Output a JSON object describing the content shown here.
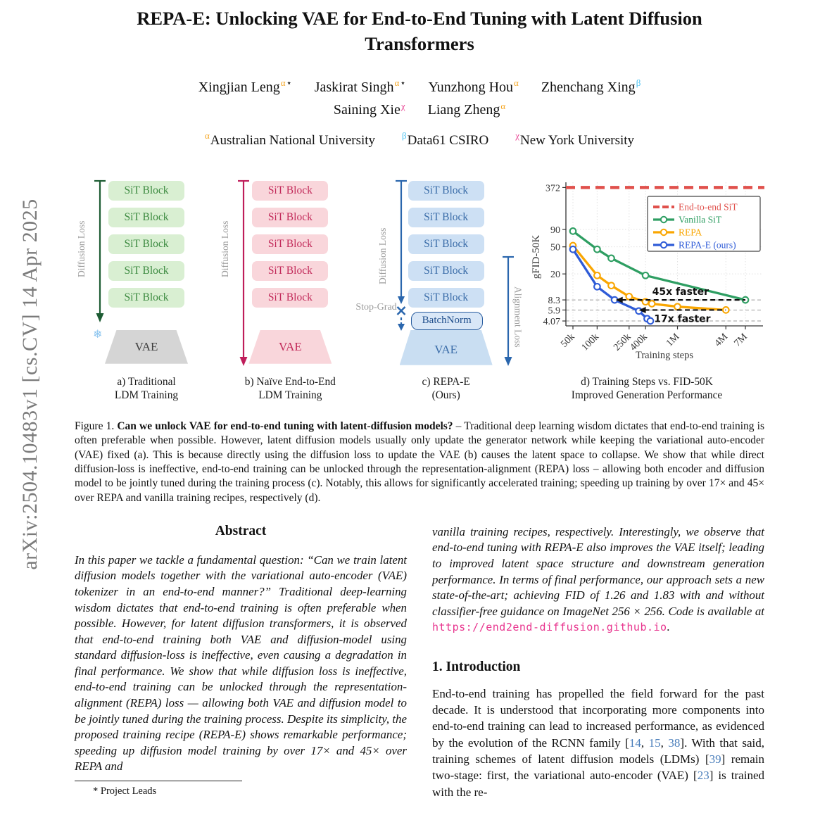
{
  "arxiv_banner": "arXiv:2504.10483v1  [cs.CV]  14 Apr 2025",
  "title": {
    "line1": "REPA-E: Unlocking VAE for End-to-End Tuning with Latent Diffusion",
    "line2": "Transformers"
  },
  "authors": {
    "row1": [
      {
        "name": "Xingjian Leng",
        "sups": [
          {
            "text": "α",
            "color": "#f5a623"
          },
          {
            "text": "⋆",
            "color": "#111111"
          }
        ]
      },
      {
        "name": "Jaskirat Singh",
        "sups": [
          {
            "text": "α",
            "color": "#f5a623"
          },
          {
            "text": "⋆",
            "color": "#111111"
          }
        ]
      },
      {
        "name": "Yunzhong Hou",
        "sups": [
          {
            "text": "α",
            "color": "#f5a623"
          }
        ]
      },
      {
        "name": "Zhenchang Xing",
        "sups": [
          {
            "text": "β",
            "color": "#45c0f0"
          }
        ]
      }
    ],
    "row2": [
      {
        "name": "Saining Xie",
        "sups": [
          {
            "text": "χ",
            "color": "#e84393"
          }
        ]
      },
      {
        "name": "Liang Zheng",
        "sups": [
          {
            "text": "α",
            "color": "#f5a623"
          }
        ]
      }
    ]
  },
  "affiliations": [
    {
      "sup": "α",
      "color": "#f5a623",
      "name": "Australian National University"
    },
    {
      "sup": "β",
      "color": "#45c0f0",
      "name": "Data61 CSIRO"
    },
    {
      "sup": "χ",
      "color": "#e84393",
      "name": "New York University"
    }
  ],
  "figure": {
    "panels": {
      "a": {
        "loss_label": "Diffusion Loss",
        "blocks": [
          "SiT Block",
          "SiT Block",
          "SiT Block",
          "SiT Block",
          "SiT Block"
        ],
        "vae_label": "VAE",
        "snowflake_icon": "❄",
        "caption_line1": "a) Traditional",
        "caption_line2": "LDM Training"
      },
      "b": {
        "loss_label": "Diffusion Loss",
        "blocks": [
          "SiT Block",
          "SiT Block",
          "SiT Block",
          "SiT Block",
          "SiT Block"
        ],
        "vae_label": "VAE",
        "caption_line1": "b) Naïve End-to-End",
        "caption_line2": "LDM Training"
      },
      "c": {
        "loss_label": "Diffusion Loss",
        "blocks": [
          "SiT Block",
          "SiT Block",
          "SiT Block",
          "SiT Block",
          "SiT Block"
        ],
        "stop_grad_label": "Stop-Grad",
        "batchnorm_label": "BatchNorm",
        "alignment_label": "Alignment Loss",
        "vae_label": "VAE",
        "caption_line1": "c) REPA-E",
        "caption_line2": "(Ours)"
      },
      "d": {
        "caption_line1": "d) Training Steps vs. FID-50K",
        "caption_line2": "Improved Generation Performance"
      }
    },
    "caption_segments": [
      {
        "text": "Figure 1.  "
      },
      {
        "text": "Can we unlock VAE for end-to-end tuning with latent-diffusion models?",
        "style": "cap-bold"
      },
      {
        "text": " – Traditional deep learning wisdom dictates that end-to-end training is often preferable when possible. However, latent diffusion models usually only update the generator network while keeping the variational auto-encoder (VAE) fixed (a). This is because directly using the diffusion loss to update the VAE (b) causes the latent space to collapse. We show that while direct diffusion-loss is ineffective, end-to-end training can be unlocked through the representation-alignment (REPA) loss – allowing both encoder and diffusion model to be jointly tuned during the training process (c). Notably, this allows for significantly accelerated training; speeding up training by over 17× and 45× over REPA and vanilla training recipes, respectively (d)."
      }
    ]
  },
  "chart_data": {
    "type": "line",
    "xlabel": "Training steps",
    "ylabel": "gFID-50K",
    "x_scale": "log",
    "y_scale": "log",
    "grid": true,
    "legend_position": "upper right",
    "x_ticks": [
      {
        "v": 50000,
        "label": "50k"
      },
      {
        "v": 100000,
        "label": "100k"
      },
      {
        "v": 250000,
        "label": "250k"
      },
      {
        "v": 400000,
        "label": "400k"
      },
      {
        "v": 1000000,
        "label": "1M"
      },
      {
        "v": 4000000,
        "label": "4M"
      },
      {
        "v": 7000000,
        "label": "7M"
      }
    ],
    "y_ticks": [
      {
        "v": 372,
        "label": "372"
      },
      {
        "v": 90,
        "label": "90"
      },
      {
        "v": 50,
        "label": "50"
      },
      {
        "v": 20,
        "label": "20"
      },
      {
        "v": 8.3,
        "label": "8.3"
      },
      {
        "v": 5.9,
        "label": "5.9"
      },
      {
        "v": 4.07,
        "label": "4.07"
      }
    ],
    "light_gridlines": [
      90,
      50,
      20
    ],
    "dashed_gridlines": [
      8.3,
      5.9,
      4.07
    ],
    "series": [
      {
        "name": "End-to-end SiT",
        "color": "#e0514c",
        "style": "hline-dashed",
        "value": 372
      },
      {
        "name": "Vanilla SiT",
        "color": "#2e9e62",
        "style": "solid-marker",
        "points": [
          [
            50000,
            85
          ],
          [
            100000,
            46
          ],
          [
            150000,
            34
          ],
          [
            400000,
            19
          ],
          [
            7000000,
            8.3
          ]
        ]
      },
      {
        "name": "REPA",
        "color": "#f9a602",
        "style": "solid-marker",
        "points": [
          [
            50000,
            52
          ],
          [
            100000,
            19
          ],
          [
            150000,
            13.5
          ],
          [
            250000,
            9.3
          ],
          [
            400000,
            7.8
          ],
          [
            480000,
            7.3
          ],
          [
            1000000,
            6.6
          ],
          [
            4000000,
            5.9
          ]
        ]
      },
      {
        "name": "REPA-E (ours)",
        "color": "#2e5bd7",
        "style": "solid-marker",
        "points": [
          [
            50000,
            46
          ],
          [
            100000,
            13
          ],
          [
            165000,
            8.3
          ],
          [
            330000,
            5.7
          ],
          [
            420000,
            4.4
          ],
          [
            460000,
            4.07
          ]
        ]
      }
    ],
    "annotations": [
      {
        "text": "45x faster",
        "y": 8.3,
        "x_from": 7000000,
        "x_to": 170000,
        "label_pos": "above"
      },
      {
        "text": "17x faster",
        "y": 5.9,
        "x_from": 4000000,
        "x_to": 330000,
        "label_pos": "below"
      }
    ]
  },
  "left_column": {
    "abstract_heading": "Abstract",
    "abstract_text": "In this paper we tackle a fundamental question: “Can we train latent diffusion models together with the variational auto-encoder (VAE) tokenizer in an end-to-end manner?” Traditional deep-learning wisdom dictates that end-to-end training is often preferable when possible. However, for latent diffusion transformers, it is observed that end-to-end training both VAE and diffusion-model using standard diffusion-loss is ineffective, even causing a degradation in final performance. We show that while diffusion loss is ineffective, end-to-end training can be unlocked through the representation-alignment (REPA) loss — allowing both VAE and diffusion model to be jointly tuned during the training process. Despite its simplicity, the proposed training recipe (REPA-E) shows remarkable performance; speeding up diffusion model training by over 17× and 45× over REPA and",
    "footnote_marker": "*",
    "footnote_text": "Project Leads"
  },
  "right_column": {
    "abstract_continued": "vanilla training recipes, respectively. Interestingly, we observe that end-to-end tuning with REPA-E also improves the VAE itself; leading to improved latent space structure and downstream generation performance. In terms of final performance, our approach sets a new state-of-the-art; achieving FID of 1.26 and 1.83 with and without classifier-free guidance on ImageNet 256 × 256. Code is available at ",
    "code_url": "https://end2end-diffusion.github.io",
    "url_suffix": ".",
    "intro_heading": "1. Introduction",
    "intro_segments": [
      {
        "text": "End-to-end training has propelled the field forward for the past decade. It is understood that incorporating more components into end-to-end training can lead to increased performance, as evidenced by the evolution of the RCNN family ["
      },
      {
        "text": "14",
        "style": "cite"
      },
      {
        "text": ", "
      },
      {
        "text": "15",
        "style": "cite"
      },
      {
        "text": ", "
      },
      {
        "text": "38",
        "style": "cite"
      },
      {
        "text": "]. With that said, training schemes of latent diffusion models (LDMs) ["
      },
      {
        "text": "39",
        "style": "cite"
      },
      {
        "text": "] remain two-stage: first, the variational auto-encoder (VAE) ["
      },
      {
        "text": "23",
        "style": "cite"
      },
      {
        "text": "] is trained with the re-"
      }
    ]
  }
}
